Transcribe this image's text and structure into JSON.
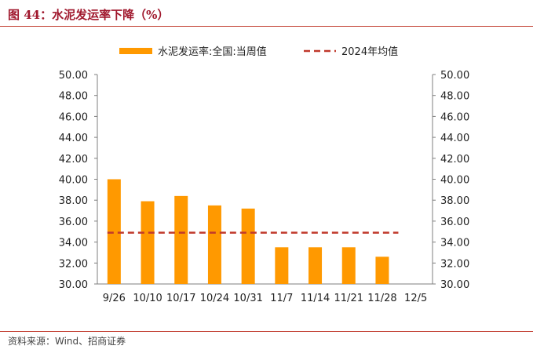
{
  "figure_title": "图 44：水泥发运率下降（%）",
  "source": "资料来源：Wind、招商证券",
  "colors": {
    "bar": "#ff9900",
    "avg_line": "#c0392b",
    "title": "#a0182d",
    "axis": "#7f7f7f"
  },
  "chart_data": {
    "type": "bar",
    "title": "",
    "xlabel": "",
    "ylabel": "",
    "ylim": [
      30,
      50
    ],
    "yticks": [
      "30.00",
      "32.00",
      "34.00",
      "36.00",
      "38.00",
      "40.00",
      "42.00",
      "44.00",
      "46.00",
      "48.00",
      "50.00"
    ],
    "categories": [
      "9/26",
      "10/10",
      "10/17",
      "10/24",
      "10/31",
      "11/7",
      "11/14",
      "11/21",
      "11/28",
      "12/5"
    ],
    "series": [
      {
        "name": "水泥发运率:全国:当周值",
        "type": "bar",
        "values": [
          40.0,
          37.9,
          38.4,
          37.5,
          37.2,
          33.5,
          33.5,
          33.5,
          32.6,
          null
        ]
      },
      {
        "name": "2024年均值",
        "type": "dashed-line",
        "value": 34.9
      }
    ],
    "legend_position": "top-center",
    "grid": false,
    "secondary_axis": true
  }
}
